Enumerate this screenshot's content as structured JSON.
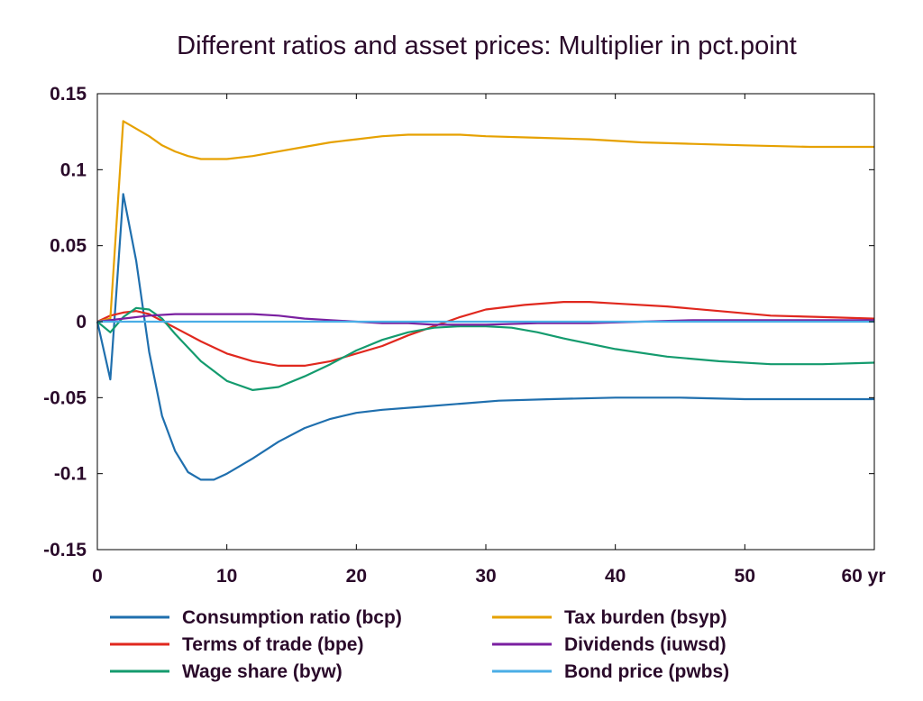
{
  "chart_data": {
    "type": "line",
    "title": "Different ratios and asset prices: Multiplier in pct.point",
    "x_unit_label": "yr",
    "xlim": [
      0,
      60
    ],
    "ylim": [
      -0.15,
      0.15
    ],
    "x_ticks": [
      0,
      10,
      20,
      30,
      40,
      50,
      60
    ],
    "x_tick_labels": [
      "0",
      "10",
      "20",
      "30",
      "40",
      "50",
      "60 yr"
    ],
    "y_ticks": [
      0.15,
      0.1,
      0.05,
      0,
      -0.05,
      -0.1,
      -0.15
    ],
    "y_tick_labels": [
      "0.15",
      "0.1",
      "0.05",
      "0",
      "-0.05",
      "-0.1",
      "-0.15"
    ],
    "grid": false,
    "legend_position": "bottom",
    "series": [
      {
        "name": "Consumption ratio (bcp)",
        "color": "#1f6fae",
        "points": [
          [
            0,
            0
          ],
          [
            1,
            -0.038
          ],
          [
            2,
            0.084
          ],
          [
            3,
            0.04
          ],
          [
            4,
            -0.02
          ],
          [
            5,
            -0.062
          ],
          [
            6,
            -0.085
          ],
          [
            7,
            -0.099
          ],
          [
            8,
            -0.104
          ],
          [
            9,
            -0.104
          ],
          [
            10,
            -0.1
          ],
          [
            12,
            -0.09
          ],
          [
            14,
            -0.079
          ],
          [
            16,
            -0.07
          ],
          [
            18,
            -0.064
          ],
          [
            20,
            -0.06
          ],
          [
            22,
            -0.058
          ],
          [
            25,
            -0.056
          ],
          [
            28,
            -0.054
          ],
          [
            31,
            -0.052
          ],
          [
            35,
            -0.051
          ],
          [
            40,
            -0.05
          ],
          [
            45,
            -0.05
          ],
          [
            50,
            -0.051
          ],
          [
            55,
            -0.051
          ],
          [
            60,
            -0.051
          ]
        ]
      },
      {
        "name": "Terms of trade (bpe)",
        "color": "#e0281e",
        "points": [
          [
            0,
            0
          ],
          [
            1,
            0.004
          ],
          [
            2,
            0.006
          ],
          [
            3,
            0.007
          ],
          [
            4,
            0.005
          ],
          [
            6,
            -0.004
          ],
          [
            8,
            -0.013
          ],
          [
            10,
            -0.021
          ],
          [
            12,
            -0.026
          ],
          [
            14,
            -0.029
          ],
          [
            16,
            -0.029
          ],
          [
            18,
            -0.026
          ],
          [
            20,
            -0.021
          ],
          [
            22,
            -0.016
          ],
          [
            24,
            -0.009
          ],
          [
            26,
            -0.003
          ],
          [
            28,
            0.003
          ],
          [
            30,
            0.008
          ],
          [
            33,
            0.011
          ],
          [
            36,
            0.013
          ],
          [
            38,
            0.013
          ],
          [
            40,
            0.012
          ],
          [
            44,
            0.01
          ],
          [
            48,
            0.007
          ],
          [
            52,
            0.004
          ],
          [
            56,
            0.003
          ],
          [
            60,
            0.002
          ]
        ]
      },
      {
        "name": "Wage share (byw)",
        "color": "#149b6e",
        "points": [
          [
            0,
            0
          ],
          [
            1,
            -0.007
          ],
          [
            2,
            0.003
          ],
          [
            3,
            0.009
          ],
          [
            4,
            0.008
          ],
          [
            5,
            0.002
          ],
          [
            6,
            -0.008
          ],
          [
            8,
            -0.026
          ],
          [
            10,
            -0.039
          ],
          [
            12,
            -0.045
          ],
          [
            14,
            -0.043
          ],
          [
            16,
            -0.036
          ],
          [
            18,
            -0.028
          ],
          [
            20,
            -0.019
          ],
          [
            22,
            -0.012
          ],
          [
            24,
            -0.007
          ],
          [
            26,
            -0.004
          ],
          [
            28,
            -0.003
          ],
          [
            30,
            -0.003
          ],
          [
            32,
            -0.004
          ],
          [
            34,
            -0.007
          ],
          [
            36,
            -0.011
          ],
          [
            40,
            -0.018
          ],
          [
            44,
            -0.023
          ],
          [
            48,
            -0.026
          ],
          [
            52,
            -0.028
          ],
          [
            56,
            -0.028
          ],
          [
            60,
            -0.027
          ]
        ]
      },
      {
        "name": "Tax burden (bsyp)",
        "color": "#e6a100",
        "points": [
          [
            0,
            0
          ],
          [
            1,
            0.002
          ],
          [
            2,
            0.132
          ],
          [
            3,
            0.127
          ],
          [
            4,
            0.122
          ],
          [
            5,
            0.116
          ],
          [
            6,
            0.112
          ],
          [
            7,
            0.109
          ],
          [
            8,
            0.107
          ],
          [
            10,
            0.107
          ],
          [
            12,
            0.109
          ],
          [
            14,
            0.112
          ],
          [
            16,
            0.115
          ],
          [
            18,
            0.118
          ],
          [
            20,
            0.12
          ],
          [
            22,
            0.122
          ],
          [
            24,
            0.123
          ],
          [
            26,
            0.123
          ],
          [
            28,
            0.123
          ],
          [
            30,
            0.122
          ],
          [
            34,
            0.121
          ],
          [
            38,
            0.12
          ],
          [
            42,
            0.118
          ],
          [
            46,
            0.117
          ],
          [
            50,
            0.116
          ],
          [
            55,
            0.115
          ],
          [
            60,
            0.115
          ]
        ]
      },
      {
        "name": "Dividends (iuwsd)",
        "color": "#7a1fa0",
        "points": [
          [
            0,
            0
          ],
          [
            2,
            0.002
          ],
          [
            4,
            0.004
          ],
          [
            6,
            0.005
          ],
          [
            8,
            0.005
          ],
          [
            10,
            0.005
          ],
          [
            12,
            0.005
          ],
          [
            14,
            0.004
          ],
          [
            16,
            0.002
          ],
          [
            18,
            0.001
          ],
          [
            20,
            0
          ],
          [
            22,
            -0.001
          ],
          [
            24,
            -0.001
          ],
          [
            26,
            -0.002
          ],
          [
            28,
            -0.002
          ],
          [
            30,
            -0.002
          ],
          [
            34,
            -0.001
          ],
          [
            38,
            -0.001
          ],
          [
            42,
            0
          ],
          [
            46,
            0.001
          ],
          [
            50,
            0.001
          ],
          [
            55,
            0.001
          ],
          [
            60,
            0.001
          ]
        ]
      },
      {
        "name": "Bond price (pwbs)",
        "color": "#4aaee6",
        "points": [
          [
            0,
            0
          ],
          [
            10,
            0
          ],
          [
            20,
            0
          ],
          [
            30,
            0
          ],
          [
            40,
            0
          ],
          [
            50,
            0
          ],
          [
            60,
            0
          ]
        ]
      }
    ]
  }
}
